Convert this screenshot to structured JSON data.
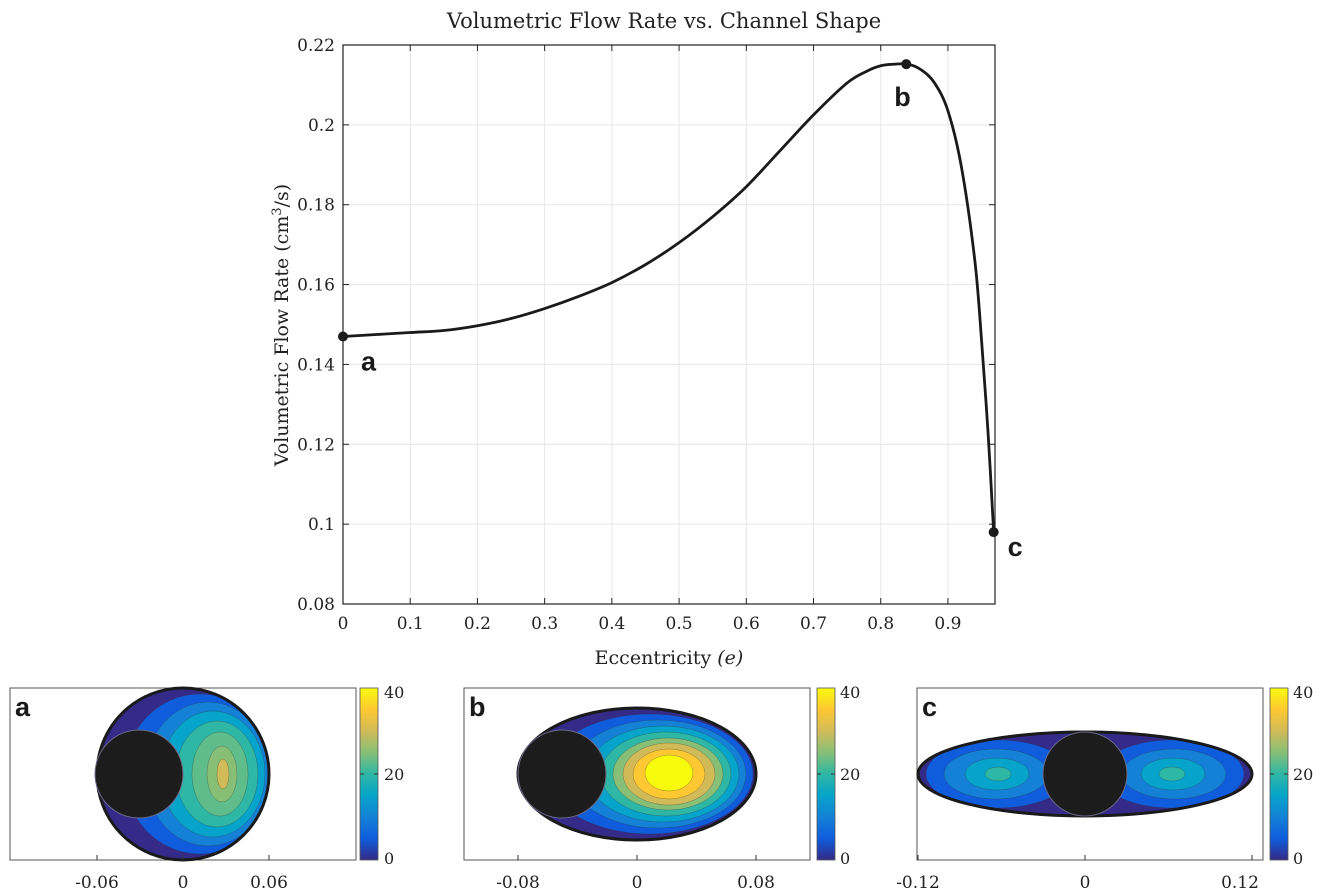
{
  "chart_data": [
    {
      "type": "line",
      "title": "Volumetric Flow Rate vs. Channel Shape",
      "xlabel": "Eccentricity",
      "xlabel_symbol": "(e)",
      "ylabel": "Volumetric Flow Rate (cm",
      "ylabel_sup": "3",
      "ylabel_tail": "/s)",
      "xlim": [
        0,
        0.97
      ],
      "ylim": [
        0.08,
        0.22
      ],
      "xticks": [
        0,
        0.1,
        0.2,
        0.3,
        0.4,
        0.5,
        0.6,
        0.7,
        0.8,
        0.9
      ],
      "xtick_labels": [
        "0",
        "0.1",
        "0.2",
        "0.3",
        "0.4",
        "0.5",
        "0.6",
        "0.7",
        "0.8",
        "0.9"
      ],
      "yticks": [
        0.08,
        0.1,
        0.12,
        0.14,
        0.16,
        0.18,
        0.2,
        0.22
      ],
      "ytick_labels": [
        "0.08",
        "0.1",
        "0.12",
        "0.14",
        "0.16",
        "0.18",
        "0.2",
        "0.22"
      ],
      "grid": true,
      "series": [
        {
          "x": [
            0,
            0.05,
            0.1,
            0.15,
            0.2,
            0.25,
            0.3,
            0.35,
            0.4,
            0.45,
            0.5,
            0.55,
            0.6,
            0.65,
            0.7,
            0.75,
            0.78,
            0.8,
            0.82,
            0.84,
            0.86,
            0.88,
            0.9,
            0.92,
            0.94,
            0.95,
            0.96,
            0.968
          ],
          "y": [
            0.147,
            0.1475,
            0.148,
            0.1485,
            0.1497,
            0.1515,
            0.154,
            0.157,
            0.1605,
            0.165,
            0.1705,
            0.177,
            0.1845,
            0.1935,
            0.2025,
            0.2105,
            0.2135,
            0.2148,
            0.2152,
            0.2152,
            0.2138,
            0.2105,
            0.2035,
            0.1895,
            0.166,
            0.146,
            0.122,
            0.098
          ]
        }
      ],
      "points": [
        {
          "label": "a",
          "x": 0,
          "y": 0.147
        },
        {
          "label": "b",
          "x": 0.838,
          "y": 0.2152
        },
        {
          "label": "c",
          "x": 0.968,
          "y": 0.098
        }
      ]
    },
    {
      "type": "heatmap",
      "panel_label": "a",
      "xticks": [
        "-0.06",
        "0",
        "0.06"
      ],
      "colorbar_ticks": [
        "40",
        "20",
        "0"
      ],
      "colorbar_range": [
        0,
        40
      ],
      "peak_value": 30
    },
    {
      "type": "heatmap",
      "panel_label": "b",
      "xticks": [
        "-0.08",
        "0",
        "0.08"
      ],
      "colorbar_ticks": [
        "40",
        "20",
        "0"
      ],
      "colorbar_range": [
        0,
        40
      ],
      "peak_value": 40
    },
    {
      "type": "heatmap",
      "panel_label": "c",
      "xticks": [
        "-0.12",
        "0",
        "0.12"
      ],
      "colorbar_ticks": [
        "40",
        "20",
        "0"
      ],
      "colorbar_range": [
        0,
        40
      ],
      "peak_value": 20
    }
  ],
  "colors": {
    "parula": [
      "#352a87",
      "#0f5cdd",
      "#1481d6",
      "#06a4ca",
      "#2eb7a4",
      "#87bf77",
      "#d1bb59",
      "#fec832",
      "#f9fb0e"
    ],
    "line": "#1a1a1a",
    "grid": "#e6e6e6",
    "obstacle": "#1c1c1c"
  }
}
